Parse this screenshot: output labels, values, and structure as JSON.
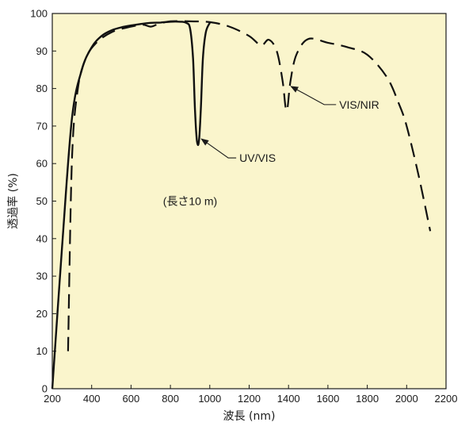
{
  "chart_data": {
    "type": "line",
    "title": "",
    "xlabel": "波長 (nm)",
    "ylabel": "透過率 (%)",
    "xlim": [
      200,
      2200
    ],
    "ylim": [
      0,
      100
    ],
    "xticks": [
      200,
      400,
      600,
      800,
      1000,
      1200,
      1400,
      1600,
      1800,
      2000,
      2200
    ],
    "yticks": [
      0,
      10,
      20,
      30,
      40,
      50,
      60,
      70,
      80,
      90,
      100
    ],
    "grid": false,
    "background": "#faf5cc",
    "inset_text": "(長さ10 m)",
    "series": [
      {
        "name": "UV/VIS",
        "style": "solid",
        "color": "#111111",
        "points": [
          [
            200,
            0
          ],
          [
            250,
            38
          ],
          [
            300,
            72
          ],
          [
            350,
            85
          ],
          [
            400,
            91
          ],
          [
            450,
            94
          ],
          [
            500,
            95.5
          ],
          [
            550,
            96.3
          ],
          [
            600,
            96.8
          ],
          [
            650,
            97.2
          ],
          [
            700,
            97.5
          ],
          [
            750,
            97.6
          ],
          [
            800,
            97.8
          ],
          [
            850,
            97.8
          ],
          [
            880,
            97.5
          ],
          [
            900,
            96
          ],
          [
            915,
            88
          ],
          [
            925,
            74
          ],
          [
            935,
            66
          ],
          [
            945,
            66
          ],
          [
            955,
            75
          ],
          [
            965,
            88
          ],
          [
            980,
            95
          ],
          [
            1000,
            97.5
          ]
        ]
      },
      {
        "name": "VIS/NIR",
        "style": "dashed",
        "color": "#111111",
        "points": [
          [
            280,
            10
          ],
          [
            300,
            61
          ],
          [
            330,
            80
          ],
          [
            370,
            88
          ],
          [
            420,
            92
          ],
          [
            500,
            95
          ],
          [
            600,
            96.5
          ],
          [
            660,
            97
          ],
          [
            700,
            96.5
          ],
          [
            740,
            97.2
          ],
          [
            800,
            97.9
          ],
          [
            900,
            97.9
          ],
          [
            1000,
            97.7
          ],
          [
            1100,
            96.5
          ],
          [
            1200,
            94
          ],
          [
            1260,
            91.5
          ],
          [
            1300,
            93
          ],
          [
            1340,
            90
          ],
          [
            1370,
            82
          ],
          [
            1385,
            75
          ],
          [
            1395,
            75
          ],
          [
            1410,
            82
          ],
          [
            1440,
            89
          ],
          [
            1500,
            93.2
          ],
          [
            1600,
            92.2
          ],
          [
            1700,
            91
          ],
          [
            1800,
            89
          ],
          [
            1900,
            83
          ],
          [
            1960,
            76
          ],
          [
            2000,
            70
          ],
          [
            2060,
            57
          ],
          [
            2120,
            42
          ]
        ]
      }
    ],
    "annotations": [
      {
        "text": "UV/VIS",
        "target": [
          945,
          67
        ]
      },
      {
        "text": "VIS/NIR",
        "target": [
          1400,
          81
        ]
      }
    ]
  }
}
